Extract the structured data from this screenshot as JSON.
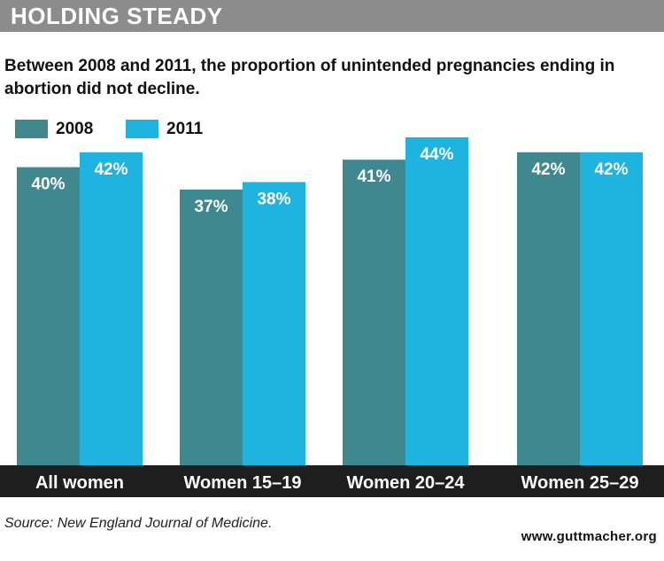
{
  "header": {
    "title": "HOLDING STEADY"
  },
  "subtitle": "Between 2008 and 2011, the proportion of unintended pregnancies ending in abortion did not decline.",
  "legend": [
    {
      "label": "2008",
      "color": "#3f8890"
    },
    {
      "label": "2011",
      "color": "#1fb3e0"
    }
  ],
  "chart_data": {
    "type": "bar",
    "categories": [
      "All women",
      "Women 15–19",
      "Women 20–24",
      "Women 25–29"
    ],
    "series": [
      {
        "name": "2008",
        "values": [
          40,
          37,
          41,
          42
        ],
        "labels": [
          "40%",
          "37%",
          "41%",
          "42%"
        ],
        "color": "#3f8890"
      },
      {
        "name": "2011",
        "values": [
          42,
          38,
          44,
          42
        ],
        "labels": [
          "42%",
          "38%",
          "44%",
          "42%"
        ],
        "color": "#1fb3e0"
      }
    ],
    "title": "HOLDING STEADY",
    "xlabel": "",
    "ylabel": "",
    "ylim": [
      0,
      44
    ],
    "grid": false,
    "legend_position": "top-left"
  },
  "footer": {
    "source": "Source: New England Journal of Medicine.",
    "credit": "www.guttmacher.org"
  }
}
